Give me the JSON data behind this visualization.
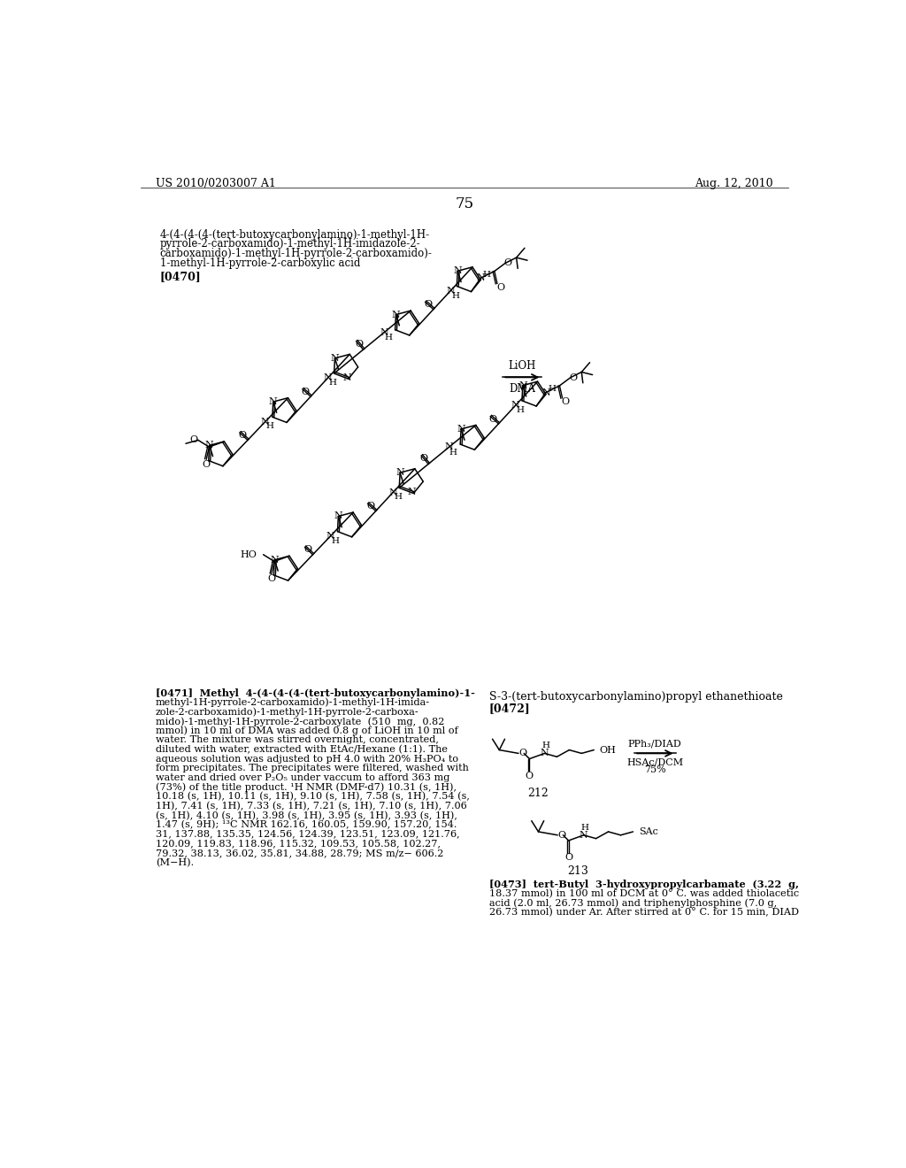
{
  "bg_color": "#ffffff",
  "header_left": "US 2010/0203007 A1",
  "header_right": "Aug. 12, 2010",
  "page_number": "75",
  "compound_title_lines": [
    "4-(4-(4-(4-(tert-butoxycarbonylamino)-1-methyl-1H-",
    "pyrrole-2-carboxamido)-1-methyl-1H-imidazole-2-",
    "carboxamido)-1-methyl-1H-pyrrole-2-carboxamido)-",
    "1-methyl-1H-pyrrole-2-carboxylic acid"
  ],
  "para471_lines": [
    "[0471]  Methyl  4-(4-(4-(4-(tert-butoxycarbonylamino)-1-",
    "methyl-1H-pyrrole-2-carboxamido)-1-methyl-1H-imida-",
    "zole-2-carboxamido)-1-methyl-1H-pyrrole-2-carboxa-",
    "mido)-1-methyl-1H-pyrrole-2-carboxylate  (510  mg,  0.82",
    "mmol) in 10 ml of DMA was added 0.8 g of LiOH in 10 ml of",
    "water. The mixture was stirred overnight, concentrated,",
    "diluted with water, extracted with EtAc/Hexane (1:1). The",
    "aqueous solution was adjusted to pH 4.0 with 20% H₃PO₄ to",
    "form precipitates. The precipitates were filtered, washed with",
    "water and dried over P₂O₅ under vaccum to afford 363 mg",
    "(73%) of the title product. ¹H NMR (DMF-d7) 10.31 (s, 1H),",
    "10.18 (s, 1H), 10.11 (s, 1H), 9.10 (s, 1H), 7.58 (s, 1H), 7.54 (s,",
    "1H), 7.41 (s, 1H), 7.33 (s, 1H), 7.21 (s, 1H), 7.10 (s, 1H), 7.06",
    "(s, 1H), 4.10 (s, 1H), 3.98 (s, 1H), 3.95 (s, 1H), 3.93 (s, 1H),",
    "1.47 (s, 9H); ¹³C NMR 162.16, 160.05, 159.90, 157.20, 154.",
    "31, 137.88, 135.35, 124.56, 124.39, 123.51, 123.09, 121.76,",
    "120.09, 119.83, 118.96, 115.32, 109.53, 105.58, 102.27,",
    "79.32, 38.13, 36.02, 35.81, 34.88, 28.79; MS m/z− 606.2",
    "(M−H)."
  ],
  "right_compound_title": "S-3-(tert-butoxycarbonylamino)propyl ethanethioate",
  "para473_lines": [
    "[0473]  tert-Butyl  3-hydroxypropylcarbamate  (3.22  g,",
    "18.37 mmol) in 100 ml of DCM at 0° C. was added thiolacetic",
    "acid (2.0 ml, 26.73 mmol) and triphenylphosphine (7.0 g,",
    "26.73 mmol) under Ar. After stirred at 0° C. for 15 min, DIAD"
  ]
}
